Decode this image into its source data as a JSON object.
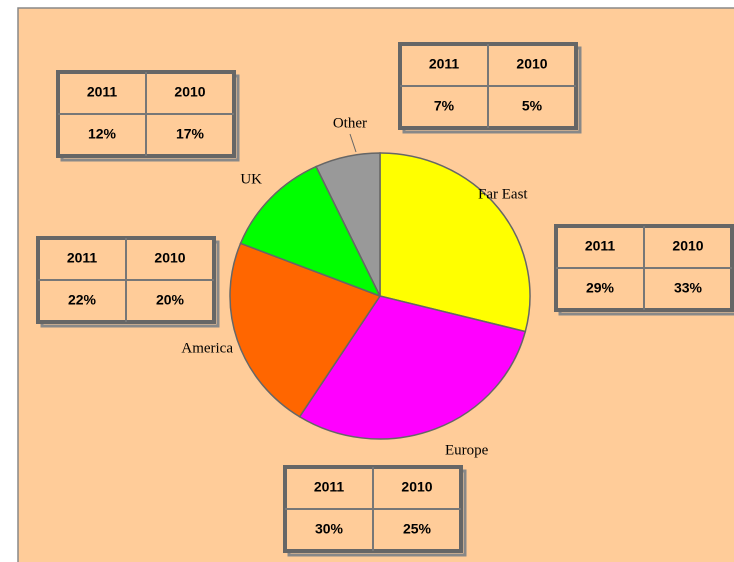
{
  "chart_data": {
    "type": "pie",
    "categories": [
      "Far East",
      "Europe",
      "America",
      "UK",
      "Other"
    ],
    "colors": [
      "#ffff00",
      "#ff00ff",
      "#ff6600",
      "#00ff00",
      "#999999"
    ],
    "series": [
      {
        "name": "2011",
        "values": [
          29,
          30,
          22,
          12,
          7
        ],
        "value_labels": [
          "29%",
          "30%",
          "22%",
          "12%",
          "7%"
        ]
      },
      {
        "name": "2010",
        "values": [
          33,
          25,
          20,
          17,
          5
        ],
        "value_labels": [
          "33%",
          "25%",
          "20%",
          "17%",
          "5%"
        ]
      }
    ]
  }
}
